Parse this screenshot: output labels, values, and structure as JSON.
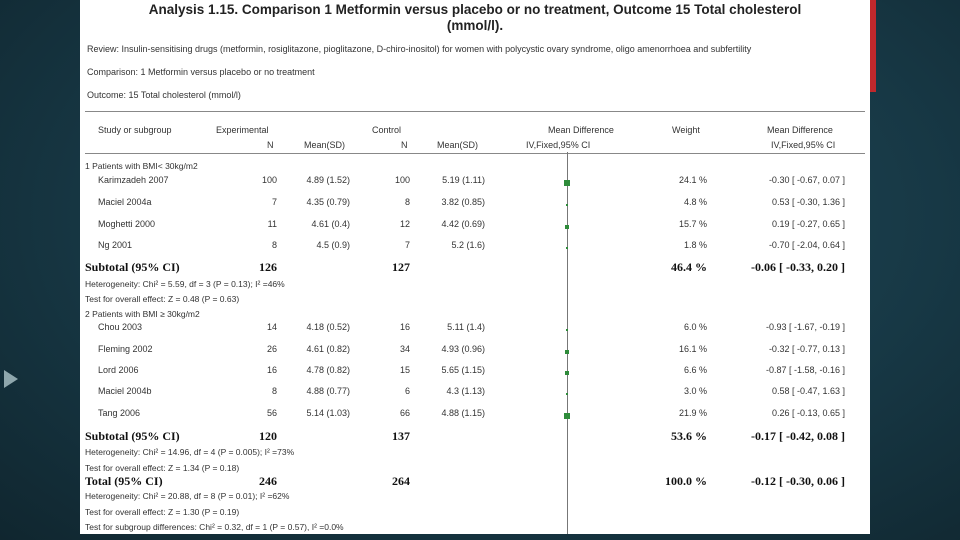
{
  "title_line1": "Analysis 1.15.   Comparison 1 Metformin versus placebo or no treatment, Outcome 15 Total cholesterol",
  "title_line2": "(mmol/l).",
  "review": "Review:   Insulin-sensitising drugs (metformin, rosiglitazone, pioglitazone, D-chiro-inositol) for women with polycystic ovary syndrome, oligo amenorrhoea and subfertility",
  "comparison": "Comparison:   1 Metformin versus placebo or no treatment",
  "outcome": "Outcome:   15 Total cholesterol (mmol/l)",
  "headers": {
    "study": "Study or subgroup",
    "experimental": "Experimental",
    "n_exp": "N",
    "mean_exp": "Mean(SD)",
    "control": "Control",
    "n_ctl": "N",
    "mean_ctl": "Mean(SD)",
    "md": "Mean Difference",
    "md_method": "IV,Fixed,95% CI",
    "weight": "Weight",
    "md2": "Mean Difference",
    "md2_method": "IV,Fixed,95% CI"
  },
  "groups": [
    {
      "label": "1 Patients with BMI< 30kg/m2",
      "studies": [
        {
          "name": "Karimzadeh 2007",
          "n_exp": "100",
          "mean_exp": "4.89 (1.52)",
          "n_ctl": "100",
          "mean_ctl": "5.19 (1.11)",
          "weight": "24.1 %",
          "ci": "-0.30 [ -0.67, 0.07 ]",
          "md": -0.3,
          "w": 24.1
        },
        {
          "name": "Maciel 2004a",
          "n_exp": "7",
          "mean_exp": "4.35 (0.79)",
          "n_ctl": "8",
          "mean_ctl": "3.82 (0.85)",
          "weight": "4.8 %",
          "ci": "0.53 [ -0.30, 1.36 ]",
          "md": 0.53,
          "w": 4.8
        },
        {
          "name": "Moghetti 2000",
          "n_exp": "11",
          "mean_exp": "4.61 (0.4)",
          "n_ctl": "12",
          "mean_ctl": "4.42 (0.69)",
          "weight": "15.7 %",
          "ci": "0.19 [ -0.27, 0.65 ]",
          "md": 0.19,
          "w": 15.7
        },
        {
          "name": "Ng 2001",
          "n_exp": "8",
          "mean_exp": "4.5 (0.9)",
          "n_ctl": "7",
          "mean_ctl": "5.2 (1.6)",
          "weight": "1.8 %",
          "ci": "-0.70 [ -2.04, 0.64 ]",
          "md": -0.7,
          "w": 1.8
        }
      ],
      "subtotal": {
        "label": "Subtotal (95% CI)",
        "n_exp": "126",
        "n_ctl": "127",
        "weight": "46.4 %",
        "ci": "-0.06 [ -0.33, 0.20 ]"
      },
      "heterogeneity": "Heterogeneity: Chi² = 5.59, df = 3 (P = 0.13); I² =46%",
      "overall": "Test for overall effect: Z = 0.48 (P = 0.63)"
    },
    {
      "label": "2 Patients with BMI ≥ 30kg/m2",
      "studies": [
        {
          "name": "Chou 2003",
          "n_exp": "14",
          "mean_exp": "4.18 (0.52)",
          "n_ctl": "16",
          "mean_ctl": "5.11 (1.4)",
          "weight": "6.0 %",
          "ci": "-0.93 [ -1.67, -0.19 ]",
          "md": -0.93,
          "w": 6.0
        },
        {
          "name": "Fleming 2002",
          "n_exp": "26",
          "mean_exp": "4.61 (0.82)",
          "n_ctl": "34",
          "mean_ctl": "4.93 (0.96)",
          "weight": "16.1 %",
          "ci": "-0.32 [ -0.77, 0.13 ]",
          "md": -0.32,
          "w": 16.1
        },
        {
          "name": "Lord 2006",
          "n_exp": "16",
          "mean_exp": "4.78 (0.82)",
          "n_ctl": "15",
          "mean_ctl": "5.65 (1.15)",
          "weight": "6.6 %",
          "ci": "-0.87 [ -1.58, -0.16 ]",
          "md": -0.87,
          "w": 6.6
        },
        {
          "name": "Maciel 2004b",
          "n_exp": "8",
          "mean_exp": "4.88 (0.77)",
          "n_ctl": "6",
          "mean_ctl": "4.3 (1.13)",
          "weight": "3.0 %",
          "ci": "0.58 [ -0.47, 1.63 ]",
          "md": 0.58,
          "w": 3.0
        },
        {
          "name": "Tang 2006",
          "n_exp": "56",
          "mean_exp": "5.14 (1.03)",
          "n_ctl": "66",
          "mean_ctl": "4.88 (1.15)",
          "weight": "21.9 %",
          "ci": "0.26 [ -0.13, 0.65 ]",
          "md": 0.26,
          "w": 21.9
        }
      ],
      "subtotal": {
        "label": "Subtotal (95% CI)",
        "n_exp": "120",
        "n_ctl": "137",
        "weight": "53.6 %",
        "ci": "-0.17 [ -0.42, 0.08 ]"
      },
      "heterogeneity": "Heterogeneity: Chi² = 14.96, df = 4 (P = 0.005); I² =73%",
      "overall": "Test for overall effect: Z = 1.34 (P = 0.18)"
    }
  ],
  "total": {
    "label": "Total (95% CI)",
    "n_exp": "246",
    "n_ctl": "264",
    "weight": "100.0 %",
    "ci": "-0.12 [ -0.30, 0.06 ]"
  },
  "total_heterogeneity": "Heterogeneity: Chi² = 20.88, df = 8 (P = 0.01); I² =62%",
  "total_overall": "Test for overall effect: Z = 1.30 (P = 0.19)",
  "subgroup_diff": "Test for subgroup differences: Chi² = 0.32, df = 1 (P = 0.57), I² =0.0%",
  "colors": {
    "accent": "#c0282c",
    "marker": "#2e8b3a",
    "background": "#173845"
  }
}
